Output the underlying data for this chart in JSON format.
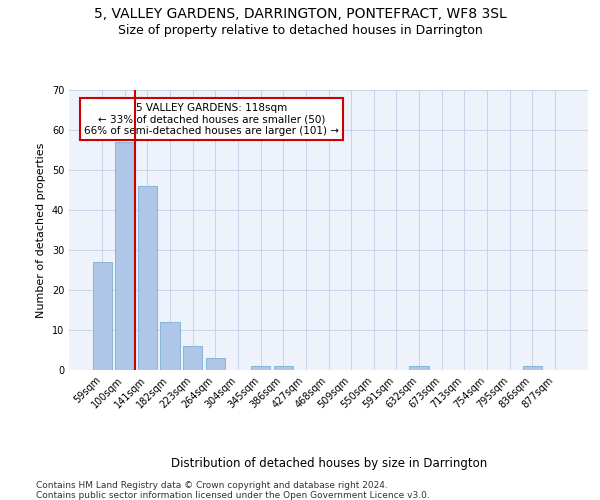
{
  "title1": "5, VALLEY GARDENS, DARRINGTON, PONTEFRACT, WF8 3SL",
  "title2": "Size of property relative to detached houses in Darrington",
  "xlabel": "Distribution of detached houses by size in Darrington",
  "ylabel": "Number of detached properties",
  "bar_labels": [
    "59sqm",
    "100sqm",
    "141sqm",
    "182sqm",
    "223sqm",
    "264sqm",
    "304sqm",
    "345sqm",
    "386sqm",
    "427sqm",
    "468sqm",
    "509sqm",
    "550sqm",
    "591sqm",
    "632sqm",
    "673sqm",
    "713sqm",
    "754sqm",
    "795sqm",
    "836sqm",
    "877sqm"
  ],
  "bar_values": [
    27,
    57,
    46,
    12,
    6,
    3,
    0,
    1,
    1,
    0,
    0,
    0,
    0,
    0,
    1,
    0,
    0,
    0,
    0,
    1,
    0
  ],
  "bar_color": "#aec6e8",
  "bar_edge_color": "#7bafd4",
  "grid_color": "#c8d4e8",
  "background_color": "#eef2fa",
  "red_line_color": "#cc0000",
  "annotation_text": "5 VALLEY GARDENS: 118sqm\n← 33% of detached houses are smaller (50)\n66% of semi-detached houses are larger (101) →",
  "annotation_box_color": "#ffffff",
  "annotation_box_edge": "#cc0000",
  "ylim": [
    0,
    70
  ],
  "yticks": [
    0,
    10,
    20,
    30,
    40,
    50,
    60,
    70
  ],
  "footer1": "Contains HM Land Registry data © Crown copyright and database right 2024.",
  "footer2": "Contains public sector information licensed under the Open Government Licence v3.0.",
  "title1_fontsize": 10,
  "title2_fontsize": 9,
  "xlabel_fontsize": 8.5,
  "ylabel_fontsize": 8,
  "tick_fontsize": 7,
  "footer_fontsize": 6.5,
  "annotation_fontsize": 7.5
}
